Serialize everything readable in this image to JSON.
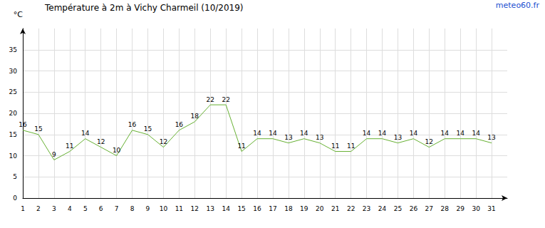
{
  "chart_data": {
    "type": "line",
    "title": "Température à 2m à Vichy Charmeil (10/2019)",
    "annotations": [
      "meteo60.fr"
    ],
    "ylabel": "°C",
    "x": [
      1,
      2,
      3,
      4,
      5,
      6,
      7,
      8,
      9,
      10,
      11,
      12,
      13,
      14,
      15,
      16,
      17,
      18,
      19,
      20,
      21,
      22,
      23,
      24,
      25,
      26,
      27,
      28,
      29,
      30,
      31
    ],
    "values": [
      16,
      15,
      9,
      11,
      14,
      12,
      10,
      16,
      15,
      12,
      16,
      18,
      22,
      22,
      11,
      14,
      14,
      13,
      14,
      13,
      11,
      11,
      14,
      14,
      13,
      14,
      12,
      14,
      14,
      14,
      13
    ],
    "color": "#66b032",
    "xlim": [
      1,
      32
    ],
    "xticks": [
      1,
      2,
      3,
      4,
      5,
      6,
      7,
      8,
      9,
      10,
      11,
      12,
      13,
      14,
      15,
      16,
      17,
      18,
      19,
      20,
      21,
      22,
      23,
      24,
      25,
      26,
      27,
      28,
      29,
      30,
      31
    ],
    "ylim": [
      0,
      40
    ],
    "yticks": [
      0,
      5,
      10,
      15,
      20,
      25,
      30,
      35
    ],
    "grid": true,
    "data_labels": true
  }
}
